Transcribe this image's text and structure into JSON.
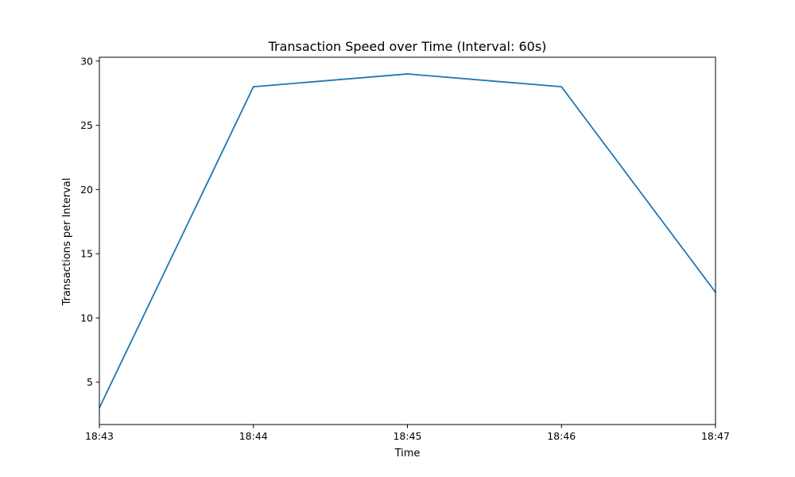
{
  "chart_data": {
    "type": "line",
    "title": "Transaction Speed over Time (Interval: 60s)",
    "xlabel": "Time",
    "ylabel": "Transactions per Interval",
    "x": [
      "18:43",
      "18:44",
      "18:45",
      "18:46",
      "18:47"
    ],
    "series": [
      {
        "values": [
          3,
          28,
          29,
          28,
          12
        ],
        "color": "#1f77b4"
      }
    ],
    "x_ticks": [
      "18:43",
      "18:44",
      "18:45",
      "18:46",
      "18:47"
    ],
    "y_ticks": [
      5,
      10,
      15,
      20,
      25,
      30
    ],
    "ylim": [
      1.7,
      30.3
    ],
    "grid": false,
    "legend": "none"
  }
}
